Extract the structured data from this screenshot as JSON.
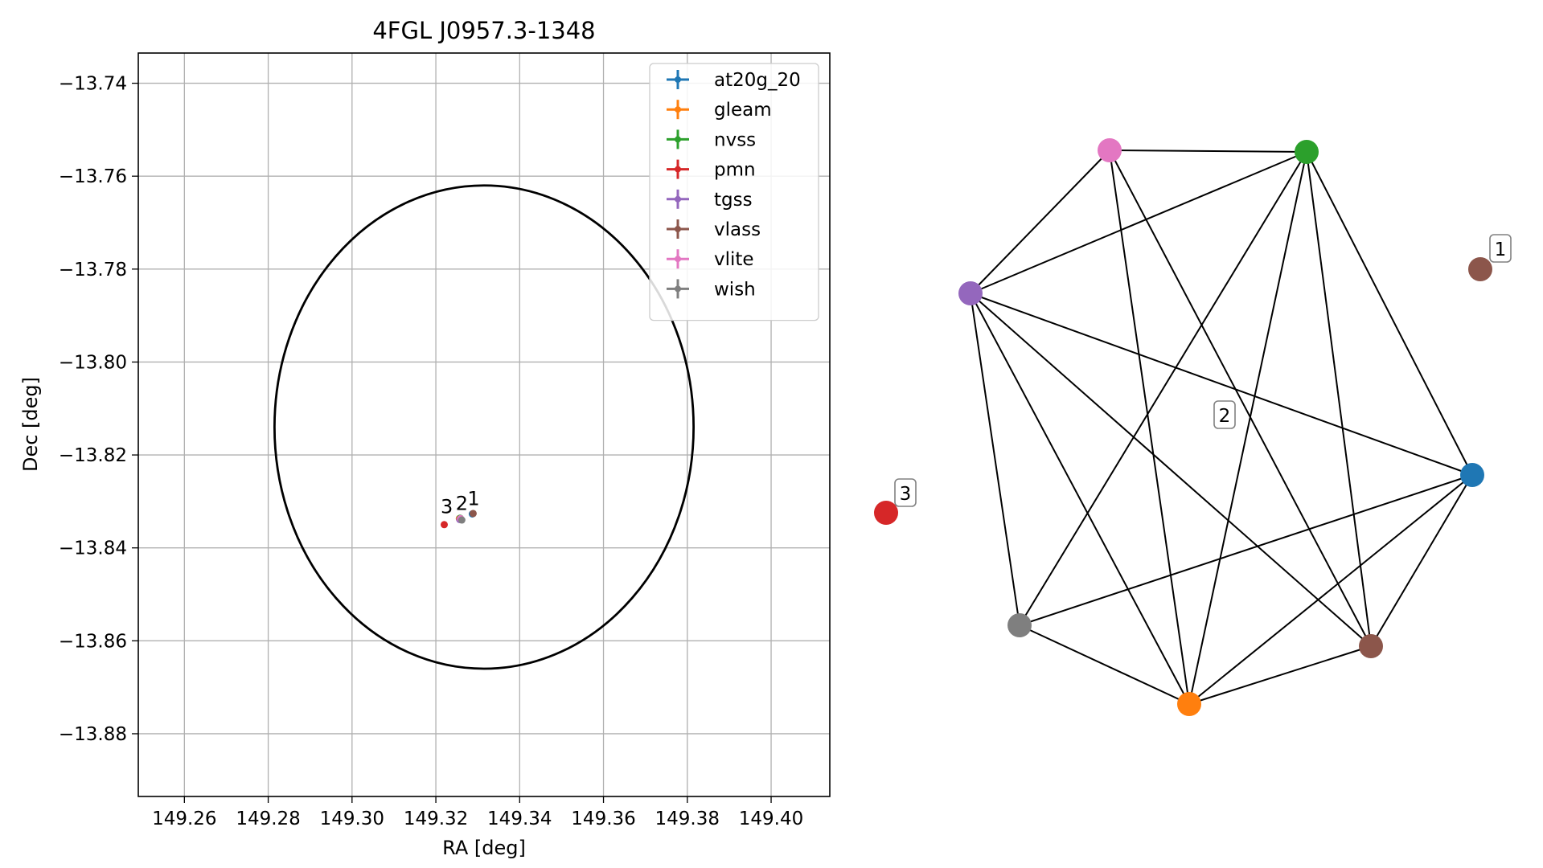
{
  "chart_data": [
    {
      "type": "scatter",
      "title": "4FGL J0957.3-1348",
      "xlabel": "RA [deg]",
      "ylabel": "Dec [deg]",
      "xlim": [
        149.249,
        149.414
      ],
      "ylim": [
        -13.8935,
        -13.7335
      ],
      "xticks": [
        149.26,
        149.28,
        149.3,
        149.32,
        149.34,
        149.36,
        149.38,
        149.4
      ],
      "xtick_labels": [
        "149.26",
        "149.28",
        "149.30",
        "149.32",
        "149.34",
        "149.36",
        "149.38",
        "149.40"
      ],
      "yticks": [
        -13.74,
        -13.76,
        -13.78,
        -13.8,
        -13.82,
        -13.84,
        -13.86,
        -13.88
      ],
      "ytick_labels": [
        "−13.74",
        "−13.76",
        "−13.78",
        "−13.80",
        "−13.82",
        "−13.84",
        "−13.86",
        "−13.88"
      ],
      "grid": true,
      "legend_position": "top-right",
      "ellipse": {
        "center": [
          149.3315,
          -13.814
        ],
        "semi_ra": 0.05,
        "semi_dec": 0.052,
        "color": "#000000"
      },
      "series": [
        {
          "name": "at20g_20",
          "color": "#1f77b4",
          "points": [
            [
              149.3287,
              -13.8327
            ]
          ]
        },
        {
          "name": "gleam",
          "color": "#ff7f0e",
          "points": [
            [
              149.3256,
              -13.8337
            ]
          ]
        },
        {
          "name": "nvss",
          "color": "#2ca02c",
          "points": [
            [
              149.3258,
              -13.8336
            ]
          ]
        },
        {
          "name": "pmn",
          "color": "#d62728",
          "points": [
            [
              149.322,
              -13.835
            ]
          ]
        },
        {
          "name": "tgss",
          "color": "#9467bd",
          "points": [
            [
              149.3257,
              -13.8339
            ]
          ]
        },
        {
          "name": "vlass",
          "color": "#8c564b",
          "points": [
            [
              149.3289,
              -13.8326
            ]
          ]
        },
        {
          "name": "vlite",
          "color": "#e377c2",
          "points": [
            [
              149.3259,
              -13.8337
            ]
          ]
        },
        {
          "name": "wish",
          "color": "#7f7f7f",
          "points": [
            [
              149.3262,
              -13.834
            ]
          ]
        }
      ],
      "annotations": [
        {
          "text": "1",
          "x": 149.329,
          "y": -13.8308
        },
        {
          "text": "2",
          "x": 149.3262,
          "y": -13.8318
        },
        {
          "text": "3",
          "x": 149.3226,
          "y": -13.8325
        }
      ]
    },
    {
      "type": "network",
      "nodes": [
        {
          "id": "at20g_20",
          "color": "#1f77b4"
        },
        {
          "id": "gleam",
          "color": "#ff7f0e"
        },
        {
          "id": "nvss",
          "color": "#2ca02c"
        },
        {
          "id": "pmn",
          "color": "#d62728"
        },
        {
          "id": "tgss",
          "color": "#9467bd"
        },
        {
          "id": "vlass",
          "color": "#8c564b"
        },
        {
          "id": "vlite",
          "color": "#e377c2"
        },
        {
          "id": "wish",
          "color": "#7f7f7f"
        }
      ],
      "edges": [
        [
          "vlite",
          "nvss"
        ],
        [
          "vlite",
          "tgss"
        ],
        [
          "vlite",
          "gleam"
        ],
        [
          "vlite",
          "vlass"
        ],
        [
          "nvss",
          "tgss"
        ],
        [
          "nvss",
          "wish"
        ],
        [
          "nvss",
          "gleam"
        ],
        [
          "nvss",
          "vlass"
        ],
        [
          "nvss",
          "at20g_20"
        ],
        [
          "tgss",
          "at20g_20"
        ],
        [
          "tgss",
          "wish"
        ],
        [
          "tgss",
          "gleam"
        ],
        [
          "tgss",
          "vlass"
        ],
        [
          "wish",
          "gleam"
        ],
        [
          "wish",
          "at20g_20"
        ],
        [
          "gleam",
          "vlass"
        ],
        [
          "gleam",
          "at20g_20"
        ],
        [
          "vlass",
          "at20g_20"
        ]
      ],
      "cluster_labels": [
        "1",
        "2",
        "3"
      ]
    }
  ]
}
